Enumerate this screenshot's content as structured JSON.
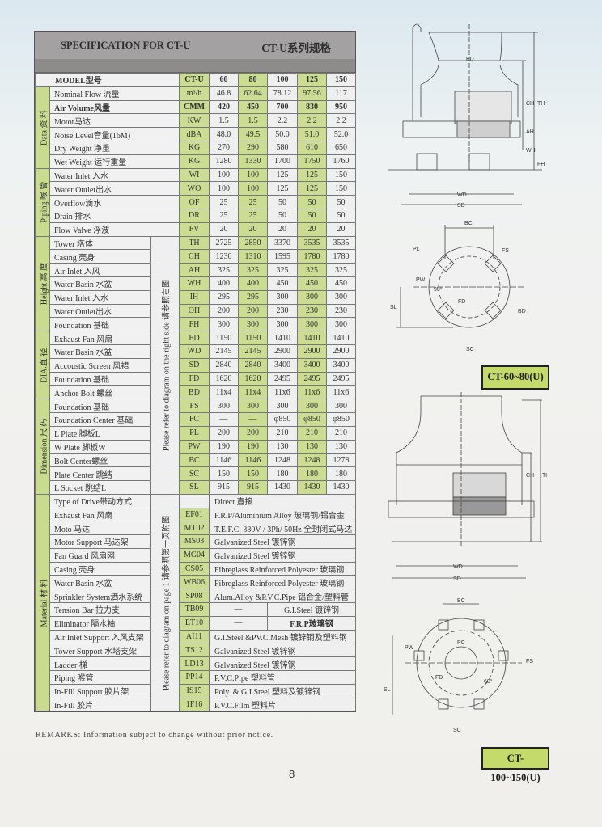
{
  "header": {
    "title_en": "SPECIFICATION FOR CT-U",
    "title_cn": "CT-U系列规格"
  },
  "model_row": {
    "label": "MODEL型号",
    "unit": "CT-U",
    "values": [
      "60",
      "80",
      "100",
      "125",
      "150"
    ]
  },
  "notes": {
    "dimensions": "Please refer to diagram on the right side  请参照右图",
    "material": "Please refer to diagram on page 1  请参照第一页附图"
  },
  "groups": [
    {
      "label": "Data 资 料",
      "rows": [
        {
          "label": "Nominal Flow 流量",
          "unit": "m³/h",
          "values": [
            "46.8",
            "62.64",
            "78.12",
            "97.56",
            "117"
          ]
        },
        {
          "label": "Air Volume风量",
          "unit": "CMM",
          "values": [
            "420",
            "450",
            "700",
            "830",
            "950"
          ],
          "bold": true
        },
        {
          "label": "Motor马达",
          "unit": "KW",
          "values": [
            "1.5",
            "1.5",
            "2.2",
            "2.2",
            "2.2"
          ]
        },
        {
          "label": "Noise Level音量(16M)",
          "unit": "dBA",
          "values": [
            "48.0",
            "49.5",
            "50.0",
            "51.0",
            "52.0"
          ]
        },
        {
          "label": "Dry Weight 净重",
          "unit": "KG",
          "values": [
            "270",
            "290",
            "580",
            "610",
            "650"
          ]
        },
        {
          "label": "Wet Weight 运行重量",
          "unit": "KG",
          "values": [
            "1280",
            "1330",
            "1700",
            "1750",
            "1760"
          ]
        }
      ]
    },
    {
      "label": "Piping 喉 管",
      "rows": [
        {
          "label": "Water Inlet 入水",
          "unit": "WI",
          "values": [
            "100",
            "100",
            "125",
            "125",
            "150"
          ]
        },
        {
          "label": "Water Outlet出水",
          "unit": "WO",
          "values": [
            "100",
            "100",
            "125",
            "125",
            "150"
          ]
        },
        {
          "label": "Overflow滴水",
          "unit": "OF",
          "values": [
            "25",
            "25",
            "50",
            "50",
            "50"
          ]
        },
        {
          "label": "Drain 排水",
          "unit": "DR",
          "values": [
            "25",
            "25",
            "50",
            "50",
            "50"
          ]
        },
        {
          "label": "Flow Valve 浮波",
          "unit": "FV",
          "values": [
            "20",
            "20",
            "20",
            "20",
            "20"
          ]
        }
      ]
    },
    {
      "label": "Height 高 度",
      "rows": [
        {
          "label": "Tower 塔体",
          "unit": "TH",
          "values": [
            "2725",
            "2850",
            "3370",
            "3535",
            "3535"
          ]
        },
        {
          "label": "Casing  壳身",
          "unit": "CH",
          "values": [
            "1230",
            "1310",
            "1595",
            "1780",
            "1780"
          ]
        },
        {
          "label": "Air Inlet 入风",
          "unit": "AH",
          "values": [
            "325",
            "325",
            "325",
            "325",
            "325"
          ]
        },
        {
          "label": "Water Basin 水盆",
          "unit": "WH",
          "values": [
            "400",
            "400",
            "450",
            "450",
            "450"
          ]
        },
        {
          "label": "Water Inlet 入水",
          "unit": "IH",
          "values": [
            "295",
            "295",
            "300",
            "300",
            "300"
          ]
        },
        {
          "label": "Water Outlet出水",
          "unit": "OH",
          "values": [
            "200",
            "200",
            "230",
            "230",
            "230"
          ]
        },
        {
          "label": "Foundation 基础",
          "unit": "FH",
          "values": [
            "300",
            "300",
            "300",
            "300",
            "300"
          ]
        }
      ]
    },
    {
      "label": "DIA.直 径",
      "rows": [
        {
          "label": "Exhaust Fan 风扇",
          "unit": "ED",
          "values": [
            "1150",
            "1150",
            "1410",
            "1410",
            "1410"
          ]
        },
        {
          "label": "Water Basin 水盆",
          "unit": "WD",
          "values": [
            "2145",
            "2145",
            "2900",
            "2900",
            "2900"
          ]
        },
        {
          "label": "Accoustic Screen 风裙",
          "unit": "SD",
          "values": [
            "2840",
            "2840",
            "3400",
            "3400",
            "3400"
          ]
        },
        {
          "label": "Foundation 基础",
          "unit": "FD",
          "values": [
            "1620",
            "1620",
            "2495",
            "2495",
            "2495"
          ]
        },
        {
          "label": "Anchor Bolt 螺丝",
          "unit": "BD",
          "values": [
            "11x4",
            "11x4",
            "11x6",
            "11x6",
            "11x6"
          ]
        }
      ]
    },
    {
      "label": "Dimension 尺 码",
      "rows": [
        {
          "label": "Foundation 基础",
          "unit": "FS",
          "values": [
            "300",
            "300",
            "300",
            "300",
            "300"
          ]
        },
        {
          "label": "Foundation Center 基础",
          "unit": "FC",
          "values": [
            "—",
            "—",
            "φ850",
            "φ850",
            "φ850"
          ]
        },
        {
          "label": "L Plate  脚板L",
          "unit": "PL",
          "values": [
            "200",
            "200",
            "210",
            "210",
            "210"
          ]
        },
        {
          "label": "W Plate  脚板W",
          "unit": "PW",
          "values": [
            "190",
            "190",
            "130",
            "130",
            "130"
          ]
        },
        {
          "label": "Bolt Center螺丝",
          "unit": "BC",
          "values": [
            "1146",
            "1146",
            "1248",
            "1248",
            "1278"
          ]
        },
        {
          "label": "Plate Center 跳结",
          "unit": "SC",
          "values": [
            "150",
            "150",
            "180",
            "180",
            "180"
          ]
        },
        {
          "label": "L Socket  跳结L",
          "unit": "SL",
          "values": [
            "915",
            "915",
            "1430",
            "1430",
            "1430"
          ]
        }
      ]
    }
  ],
  "material": {
    "label": "Material 材 料",
    "rows": [
      {
        "label": "Type of Drive带动方式",
        "code": "",
        "desc": "Direct 直接"
      },
      {
        "label": "Exhaust Fan 风扇",
        "code": "EF01",
        "desc": "F.R.P/Aluminium Alloy 玻璃钢/铝合金"
      },
      {
        "label": "Moto 马达",
        "code": "MT02",
        "desc": "T.E.F.C. 380V / 3Ph/ 50Hz 全封闭式马达"
      },
      {
        "label": "Motor Support 马达架",
        "code": "MS03",
        "desc": "Galvanized Steel 镀锌钢"
      },
      {
        "label": "Fan Guard 风扇网",
        "code": "MG04",
        "desc": "Galvanized Steel 镀锌钢"
      },
      {
        "label": "Casing 壳身",
        "code": "CS05",
        "desc": "Fibreglass Reinforced Polyester 玻璃钢"
      },
      {
        "label": "Water Basin 水盆",
        "code": "WB06",
        "desc": "Fibreglass Reinforced Polyester 玻璃钢"
      },
      {
        "label": "Sprinkler System洒水系统",
        "code": "SP08",
        "desc": "Alum.Alloy &P.V.C.Pipe 铝合金/塑料管"
      },
      {
        "label": "Tension Bar 拉力支",
        "code": "TB09",
        "split": [
          "—",
          "G.I.Steel 镀锌钢"
        ]
      },
      {
        "label": "Eliminator 隔水袖",
        "code": "ET10",
        "split": [
          "—",
          "F.R.P玻璃钢"
        ]
      },
      {
        "label": "Air Inlet Support 入风支架",
        "code": "AI11",
        "desc": "G.I.Steel &PV.C.Mesh 镀锌钢及塑料钢"
      },
      {
        "label": "Tower Support 水塔支架",
        "code": "TS12",
        "desc": "Galvanized Steel 镀锌钢"
      },
      {
        "label": "Ladder 梯",
        "code": "LD13",
        "desc": "Galvanized Steel 镀锌钢"
      },
      {
        "label": "Piping 喉管",
        "code": "PP14",
        "desc": "P.V.C.Pipe 塑料管"
      },
      {
        "label": "In-Fill Support 胶片架",
        "code": "IS15",
        "desc": "Poly. & G.I.Steel 塑料及镀锌钢"
      },
      {
        "label": "In-Fill 胶片",
        "code": "1F16",
        "desc": "P.V.C.Film 塑料片"
      }
    ]
  },
  "remarks": "REMARKS:  Information subject to change without prior notice.",
  "page_number": "8",
  "diagrams": {
    "top": {
      "tag": "CT-60~80(U)",
      "labels": {
        "ed": "ED",
        "ch": "CH",
        "th": "TH",
        "ah": "AH",
        "wh": "WH",
        "fh": "FH",
        "wd": "WD",
        "sd": "SD",
        "bc": "BC",
        "fs": "FS",
        "pl": "PL",
        "pw": "PW",
        "sl": "SL",
        "fd": "FD",
        "bd": "BD",
        "sc": "SC",
        "deg": "90°"
      }
    },
    "bottom": {
      "tag": "CT-100~150(U)",
      "labels": {
        "ch": "CH",
        "th": "TH",
        "wd": "WD",
        "sd": "SD",
        "bc": "BC",
        "pc": "PC",
        "pw": "PW",
        "fs": "FS",
        "sl": "SL",
        "fd": "FD",
        "deg": "60°",
        "sc": "SC"
      }
    }
  },
  "colors": {
    "green_cell": "#cbdc93",
    "header_gray": "#a3a1a2",
    "tag_green": "#c4da6a"
  }
}
